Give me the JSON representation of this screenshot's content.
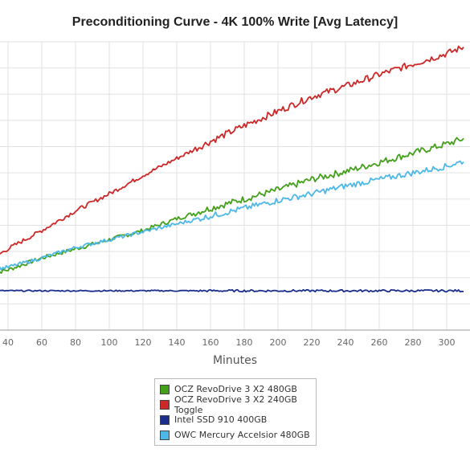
{
  "title": "Preconditioning Curve - 4K 100% Write [Avg Latency]",
  "chart_data": {
    "type": "line",
    "title": "Preconditioning Curve - 4K 100% Write [Avg Latency]",
    "xlabel": "Minutes",
    "ylabel": "",
    "xticks": [
      40,
      60,
      80,
      100,
      120,
      140,
      160,
      180,
      200,
      220,
      240,
      260,
      280,
      300
    ],
    "xlim": [
      30,
      310
    ],
    "ylim": [
      0,
      11
    ],
    "grid": true,
    "legend_position": "bottom-center",
    "series": [
      {
        "name": "OCZ RevoDrive 3 X2 480GB",
        "color": "#44a01a",
        "x": [
          30,
          40,
          60,
          80,
          100,
          120,
          140,
          160,
          180,
          200,
          220,
          240,
          260,
          280,
          300,
          310
        ],
        "y": [
          2.15,
          2.3,
          2.75,
          3.1,
          3.45,
          3.8,
          4.25,
          4.65,
          5.0,
          5.35,
          5.75,
          6.05,
          6.4,
          6.75,
          7.1,
          7.3
        ],
        "noise": 0.08
      },
      {
        "name": "OCZ RevoDrive 3 X2 240GB Toggle",
        "color": "#cc2828",
        "x": [
          30,
          40,
          60,
          80,
          100,
          120,
          140,
          160,
          180,
          200,
          220,
          240,
          260,
          280,
          300,
          310
        ],
        "y": [
          2.7,
          3.1,
          3.8,
          4.55,
          5.2,
          5.9,
          6.55,
          7.2,
          7.8,
          8.35,
          8.9,
          9.3,
          9.75,
          10.15,
          10.55,
          10.8
        ],
        "noise": 0.08
      },
      {
        "name": "Intel SSD 910 400GB",
        "color": "#1a2e8c",
        "x": [
          30,
          310
        ],
        "y": [
          1.5,
          1.5
        ],
        "noise": 0.025
      },
      {
        "name": "OWC Mercury Accelsior 480GB",
        "color": "#4db8e8",
        "x": [
          30,
          40,
          60,
          80,
          100,
          120,
          140,
          160,
          180,
          200,
          220,
          240,
          260,
          280,
          300,
          310
        ],
        "y": [
          2.3,
          2.4,
          2.75,
          3.15,
          3.45,
          3.75,
          4.05,
          4.35,
          4.65,
          4.95,
          5.2,
          5.5,
          5.75,
          6.0,
          6.25,
          6.45
        ],
        "noise": 0.07
      }
    ]
  }
}
